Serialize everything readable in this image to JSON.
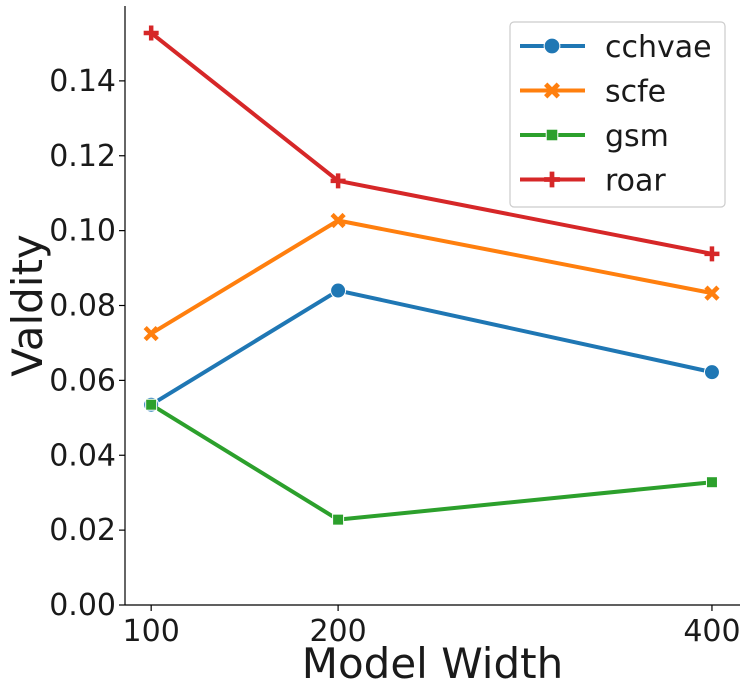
{
  "chart_data": {
    "type": "line",
    "xlabel": "Model Width",
    "ylabel": "Valdity",
    "x": [
      100,
      200,
      400
    ],
    "xlim": [
      86,
      415
    ],
    "ylim": [
      0,
      0.16
    ],
    "xticks": [
      "100",
      "200",
      "400"
    ],
    "yticks": [
      "0.00",
      "0.02",
      "0.04",
      "0.06",
      "0.08",
      "0.10",
      "0.12",
      "0.14"
    ],
    "grid": false,
    "legend_position": "top-right",
    "series": [
      {
        "name": "cchvae",
        "marker": "circle",
        "color": "#1f77b4",
        "values": [
          0.0535,
          0.084,
          0.0622
        ]
      },
      {
        "name": "scfe",
        "marker": "x",
        "color": "#ff7f0e",
        "values": [
          0.0725,
          0.1027,
          0.0833
        ]
      },
      {
        "name": "gsm",
        "marker": "square",
        "color": "#2ca02c",
        "values": [
          0.0535,
          0.0228,
          0.0328
        ]
      },
      {
        "name": "roar",
        "marker": "plus",
        "color": "#d62728",
        "values": [
          0.1528,
          0.1133,
          0.0938
        ]
      }
    ]
  }
}
